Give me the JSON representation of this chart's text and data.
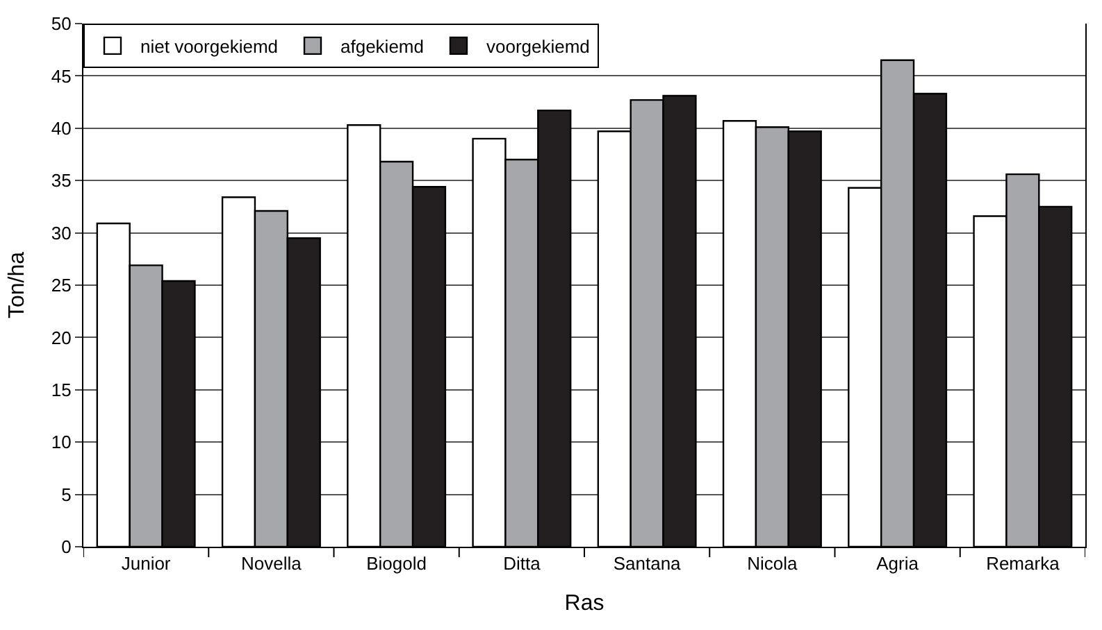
{
  "chart_data": {
    "type": "bar",
    "xlabel": "Ras",
    "ylabel": "Ton/ha",
    "categories": [
      "Junior",
      "Novella",
      "Biogold",
      "Ditta",
      "Santana",
      "Nicola",
      "Agria",
      "Remarka"
    ],
    "series": [
      {
        "name": "niet voorgekiemd",
        "color": "#ffffff",
        "values": [
          30.9,
          33.4,
          40.3,
          39.0,
          39.7,
          40.7,
          34.3,
          31.6
        ]
      },
      {
        "name": "afgekiemd",
        "color": "#a6a7aa",
        "values": [
          26.9,
          32.1,
          36.8,
          37.0,
          42.7,
          40.1,
          46.5,
          35.6
        ]
      },
      {
        "name": "voorgekiemd",
        "color": "#231f20",
        "values": [
          25.4,
          29.5,
          34.4,
          41.7,
          43.1,
          39.7,
          43.3,
          32.5
        ]
      }
    ],
    "ylim": [
      0,
      50
    ],
    "yticks": [
      0,
      5,
      10,
      15,
      20,
      25,
      30,
      35,
      40,
      45,
      50
    ],
    "grid": "y",
    "legend": "top left"
  }
}
